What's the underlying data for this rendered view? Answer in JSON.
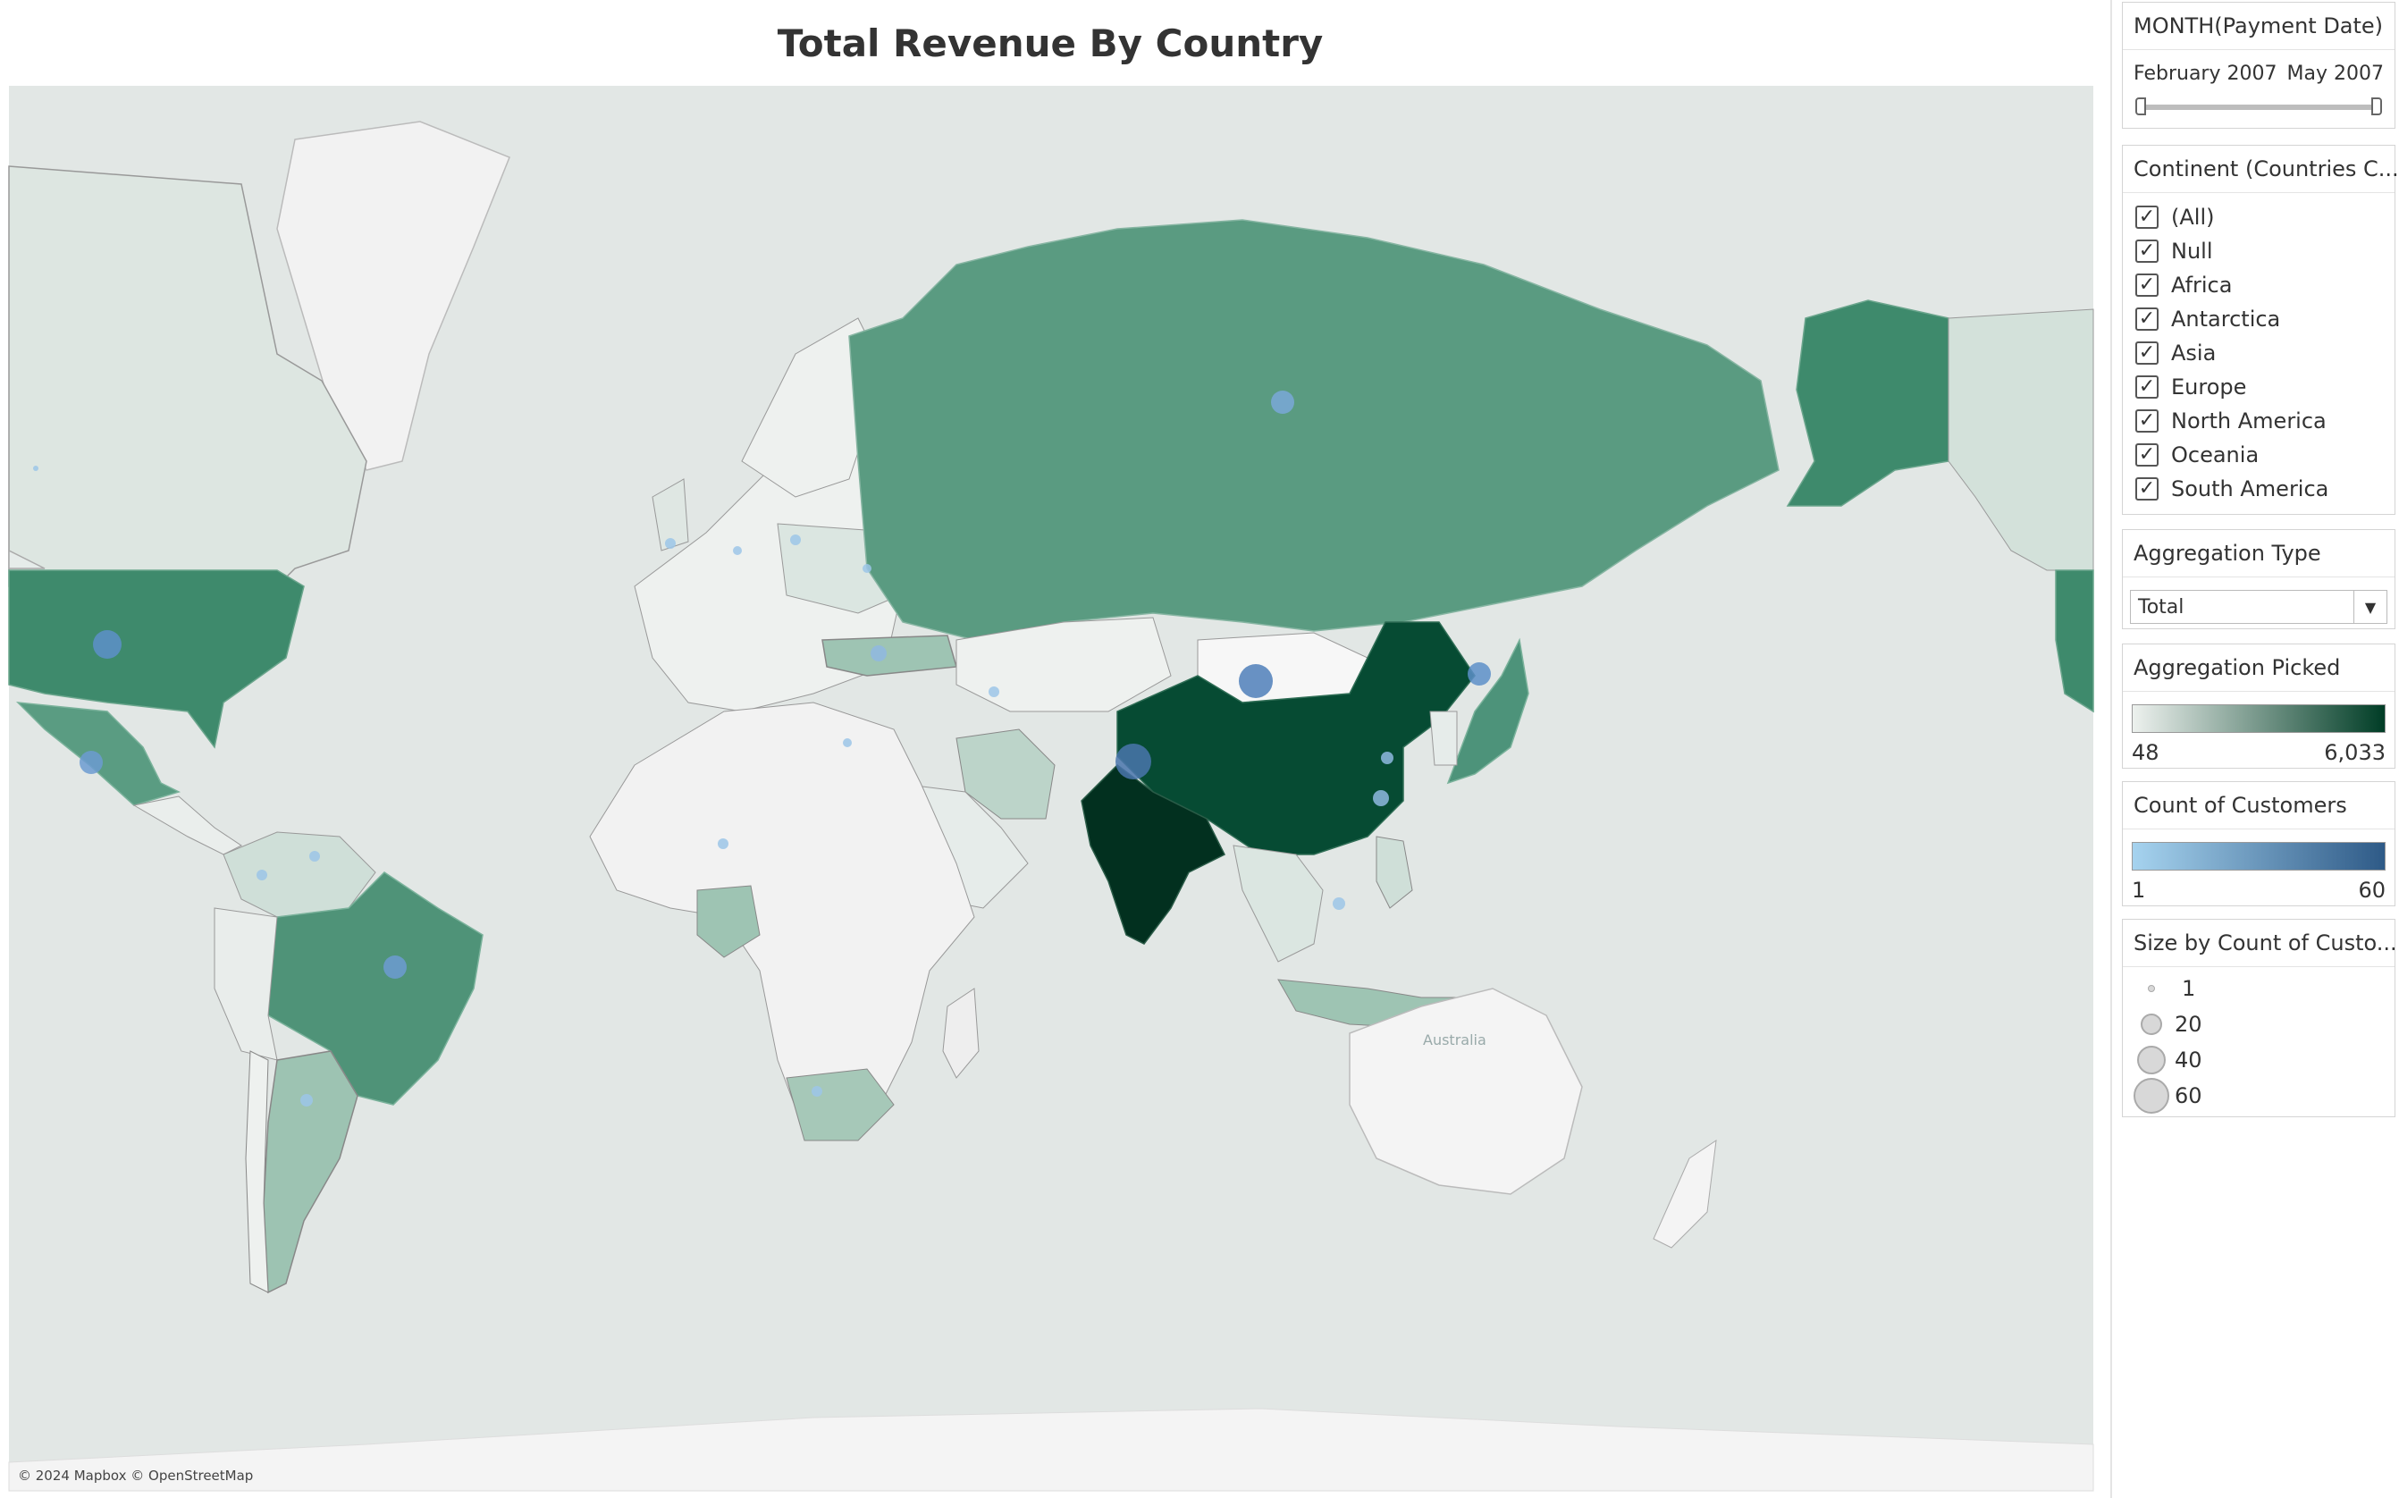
{
  "title": "Total Revenue By Country",
  "map": {
    "attribution": "© 2024 Mapbox © OpenStreetMap",
    "ocean_label": "Australia",
    "colors": {
      "ocean": "#e2e7e5",
      "land": "#f2f2f2",
      "border": "#8a8a8a"
    },
    "countries": [
      {
        "name": "Russia",
        "revenue_level": 0.45
      },
      {
        "name": "Alaska (United States)",
        "revenue_level": 0.6
      },
      {
        "name": "United States",
        "revenue_level": 0.6
      },
      {
        "name": "Mexico",
        "revenue_level": 0.45
      },
      {
        "name": "Brazil",
        "revenue_level": 0.55
      },
      {
        "name": "Argentina",
        "revenue_level": 0.3
      },
      {
        "name": "China",
        "revenue_level": 0.95
      },
      {
        "name": "India",
        "revenue_level": 1.0
      },
      {
        "name": "Japan",
        "revenue_level": 0.45
      },
      {
        "name": "Indonesia",
        "revenue_level": 0.25
      },
      {
        "name": "Philippines",
        "revenue_level": 0.2
      },
      {
        "name": "Nigeria",
        "revenue_level": 0.3
      },
      {
        "name": "South Africa",
        "revenue_level": 0.25
      },
      {
        "name": "Turkey",
        "revenue_level": 0.3
      },
      {
        "name": "Iran",
        "revenue_level": 0.2
      },
      {
        "name": "Canada",
        "revenue_level": 0.1
      },
      {
        "name": "Kazakhstan",
        "revenue_level": 0.05
      },
      {
        "name": "Greenland",
        "revenue_level": 0.02
      },
      {
        "name": "Australia",
        "revenue_level": 0.0
      }
    ]
  },
  "filters": {
    "month": {
      "title": "MONTH(Payment Date)",
      "start_label": "February 2007",
      "end_label": "May 2007"
    },
    "continent": {
      "title": "Continent (Countries C...",
      "options": [
        {
          "label": "(All)",
          "checked": true
        },
        {
          "label": "Null",
          "checked": true
        },
        {
          "label": "Africa",
          "checked": true
        },
        {
          "label": "Antarctica",
          "checked": true
        },
        {
          "label": "Asia",
          "checked": true
        },
        {
          "label": "Europe",
          "checked": true
        },
        {
          "label": "North America",
          "checked": true
        },
        {
          "label": "Oceania",
          "checked": true
        },
        {
          "label": "South America",
          "checked": true
        }
      ]
    },
    "aggregation_type": {
      "title": "Aggregation Type",
      "selected": "Total"
    }
  },
  "legends": {
    "aggregation_picked": {
      "title": "Aggregation Picked",
      "min_label": "48",
      "max_label": "6,033",
      "color_min": "#edf1ee",
      "color_max": "#003d26"
    },
    "count_of_customers": {
      "title": "Count of Customers",
      "min_label": "1",
      "max_label": "60",
      "color_min": "#a6d3ef",
      "color_max": "#2e5a87"
    },
    "size": {
      "title": "Size by Count of Custo...",
      "items": [
        {
          "label": "1",
          "value": 1
        },
        {
          "label": "20",
          "value": 20
        },
        {
          "label": "40",
          "value": 40
        },
        {
          "label": "60",
          "value": 60
        }
      ]
    }
  }
}
